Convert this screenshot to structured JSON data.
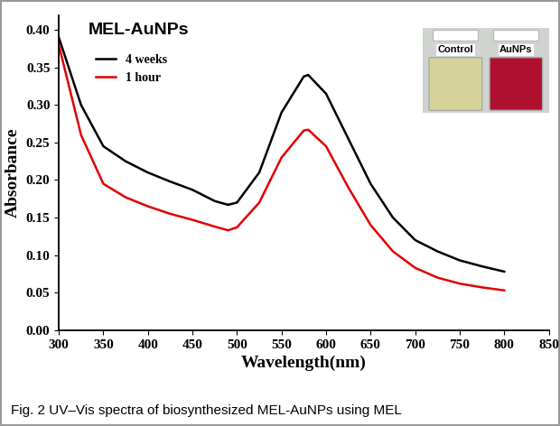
{
  "chart_data": {
    "type": "line",
    "title": "MEL-AuNPs",
    "x_label": "Wavelength(nm)",
    "y_label": "Absorbance",
    "caption": "Fig. 2 UV–Vis spectra of biosynthesized MEL-AuNPs using MEL",
    "annotations": [
      "Control",
      "AuNPs"
    ],
    "x": [
      300,
      325,
      350,
      375,
      400,
      425,
      450,
      475,
      490,
      500,
      525,
      550,
      575,
      580,
      600,
      625,
      650,
      675,
      700,
      725,
      750,
      775,
      800
    ],
    "series": [
      {
        "name": "4 weeks",
        "color": "#000000",
        "values": [
          0.39,
          0.3,
          0.245,
          0.225,
          0.21,
          0.198,
          0.187,
          0.172,
          0.167,
          0.17,
          0.21,
          0.29,
          0.338,
          0.34,
          0.315,
          0.255,
          0.195,
          0.15,
          0.12,
          0.105,
          0.093,
          0.085,
          0.078
        ]
      },
      {
        "name": "1 hour",
        "color": "#e00000",
        "values": [
          0.38,
          0.26,
          0.195,
          0.177,
          0.165,
          0.155,
          0.147,
          0.138,
          0.133,
          0.137,
          0.17,
          0.23,
          0.266,
          0.267,
          0.245,
          0.19,
          0.14,
          0.105,
          0.083,
          0.07,
          0.062,
          0.057,
          0.053
        ]
      }
    ],
    "xlim": [
      300,
      850
    ],
    "xticks": [
      300,
      350,
      400,
      450,
      500,
      550,
      600,
      650,
      700,
      750,
      800,
      850
    ],
    "ylim": [
      0,
      0.42
    ],
    "yticks": [
      {
        "value": 0,
        "label": "0.00"
      },
      {
        "value": 0.05,
        "label": "0.05"
      },
      {
        "value": 0.1,
        "label": "0.10"
      },
      {
        "value": 0.15,
        "label": "0.15"
      },
      {
        "value": 0.2,
        "label": "0.20"
      },
      {
        "value": 0.25,
        "label": "0.25"
      },
      {
        "value": 0.3,
        "label": "0.30"
      },
      {
        "value": 0.35,
        "label": "0.35"
      },
      {
        "value": 0.4,
        "label": "0.40"
      }
    ],
    "legend": "upper left",
    "grid": false
  }
}
